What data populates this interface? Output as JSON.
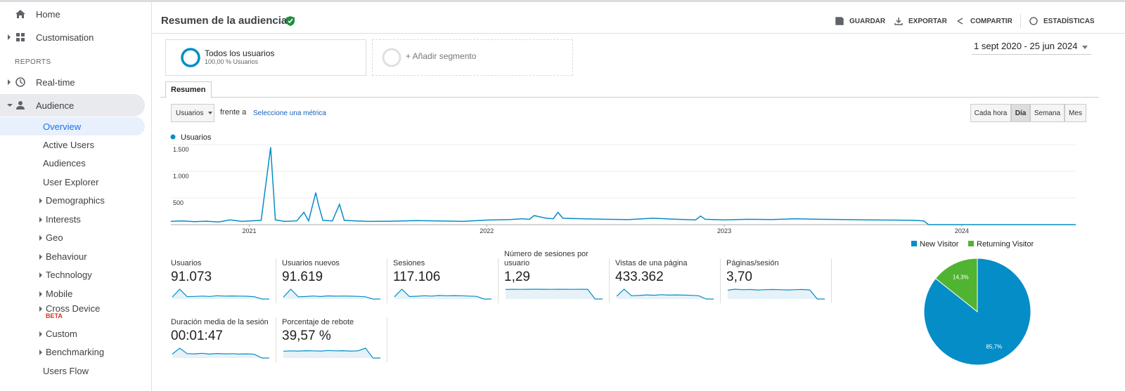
{
  "sidebar": {
    "home": "Home",
    "customisation": "Customisation",
    "reports": "REPORTS",
    "realtime": "Real-time",
    "audience": "Audience",
    "sub": [
      "Overview",
      "Active Users",
      "Audiences",
      "User Explorer",
      "Demographics",
      "Interests",
      "Geo",
      "Behaviour",
      "Technology",
      "Mobile",
      "Cross Device",
      "Custom",
      "Benchmarking",
      "Users Flow"
    ],
    "beta": "BETA"
  },
  "header": {
    "title": "Resumen de la audiencia",
    "actions": [
      "GUARDAR",
      "EXPORTAR",
      "COMPARTIR",
      "ESTADÍSTICAS"
    ]
  },
  "segments": {
    "name": "Todos los usuarios",
    "detail": "100,00 % Usuarios",
    "add": "+ Añadir segmento"
  },
  "date_range": "1 sept 2020 - 25 jun 2024",
  "tab": "Resumen",
  "controls": {
    "metric": "Usuarios",
    "versus": "frente a",
    "select": "Seleccione una métrica",
    "granularity": [
      "Cada hora",
      "Día",
      "Semana",
      "Mes"
    ]
  },
  "chart_data": [
    {
      "type": "line",
      "x": [
        2020.67,
        2020.72,
        2020.77,
        2020.82,
        2020.87,
        2020.92,
        2020.97,
        2021.0,
        2021.05,
        2021.09,
        2021.11,
        2021.15,
        2021.2,
        2021.23,
        2021.25,
        2021.28,
        2021.29,
        2021.31,
        2021.35,
        2021.38,
        2021.4,
        2021.45,
        2021.5,
        2021.6,
        2021.7,
        2021.8,
        2021.9,
        2022.0,
        2022.1,
        2022.15,
        2022.18,
        2022.2,
        2022.25,
        2022.28,
        2022.3,
        2022.32,
        2022.4,
        2022.5,
        2022.6,
        2022.7,
        2022.8,
        2022.88,
        2022.9,
        2022.92,
        2023.0,
        2023.1,
        2023.2,
        2023.3,
        2023.4,
        2023.5,
        2023.6,
        2023.7,
        2023.8,
        2023.84,
        2023.86,
        2024.0,
        2024.2,
        2024.48
      ],
      "series": [
        {
          "name": "Usuarios",
          "color": "#058dc7",
          "values": [
            60,
            70,
            55,
            65,
            50,
            90,
            60,
            70,
            80,
            1450,
            90,
            60,
            70,
            230,
            70,
            600,
            400,
            80,
            70,
            380,
            80,
            70,
            60,
            65,
            75,
            70,
            60,
            85,
            95,
            110,
            100,
            170,
            120,
            110,
            230,
            120,
            110,
            100,
            95,
            120,
            100,
            90,
            160,
            100,
            90,
            100,
            95,
            110,
            100,
            95,
            90,
            85,
            80,
            70,
            0,
            0,
            0,
            0
          ]
        }
      ],
      "xlim": [
        2020.67,
        2024.48
      ],
      "xticks": [
        2021,
        2022,
        2023,
        2024
      ],
      "ylim": [
        0,
        1500
      ],
      "yticks": [
        500,
        {
          "value": 1000,
          "label": "1.000"
        },
        {
          "value": 1500,
          "label": "1.500"
        }
      ],
      "grid": true
    },
    {
      "type": "pie",
      "categories": [
        "New Visitor",
        "Returning Visitor"
      ],
      "values": [
        85.7,
        14.3
      ],
      "value_labels": [
        "85,7%",
        "14,3%"
      ],
      "colors": [
        "#058dc7",
        "#50b432"
      ]
    }
  ],
  "metrics": [
    {
      "label": "Usuarios",
      "value": "91.073",
      "spark": [
        60,
        300,
        70,
        80,
        90,
        80,
        100,
        90,
        95,
        90,
        85,
        70,
        0,
        0
      ]
    },
    {
      "label": "Usuarios nuevos",
      "value": "91.619",
      "spark": [
        60,
        310,
        70,
        80,
        95,
        80,
        100,
        90,
        95,
        90,
        85,
        70,
        0,
        0
      ]
    },
    {
      "label": "Sesiones",
      "value": "117.106",
      "spark": [
        75,
        330,
        85,
        95,
        110,
        100,
        120,
        110,
        115,
        110,
        100,
        90,
        0,
        0
      ]
    },
    {
      "label": "Número de sesiones por usuario",
      "value": "1,29",
      "spark": [
        1.28,
        1.3,
        1.29,
        1.3,
        1.31,
        1.3,
        1.29,
        1.3,
        1.3,
        1.29,
        1.3,
        1.3,
        0,
        0
      ]
    },
    {
      "label": "Vistas de una página",
      "value": "433.362",
      "spark": [
        250,
        900,
        300,
        330,
        380,
        350,
        400,
        360,
        380,
        360,
        340,
        300,
        0,
        0
      ]
    },
    {
      "label": "Páginas/sesión",
      "value": "3,70",
      "spark": [
        3.5,
        3.9,
        3.7,
        3.8,
        3.6,
        3.7,
        3.8,
        3.7,
        3.6,
        3.7,
        3.8,
        3.6,
        0,
        0
      ]
    },
    {
      "label": "Duración media de la sesión",
      "value": "00:01:47",
      "spark": [
        100,
        250,
        110,
        105,
        120,
        100,
        115,
        105,
        110,
        100,
        105,
        95,
        0,
        0
      ]
    },
    {
      "label": "Porcentaje de rebote",
      "value": "39,57 %",
      "spark": [
        38,
        40,
        39,
        41,
        40,
        39,
        42,
        40,
        41,
        39,
        40,
        55,
        0,
        0
      ]
    }
  ]
}
